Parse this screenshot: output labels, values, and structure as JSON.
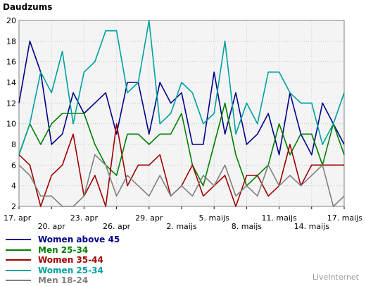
{
  "chart_data": {
    "type": "line",
    "title": "Daudzums",
    "ylim": [
      2,
      20
    ],
    "y_ticks": [
      2,
      4,
      6,
      8,
      10,
      12,
      14,
      16,
      18,
      20
    ],
    "grid": true,
    "legend_position": "bottom-left",
    "x": [
      "17. apr",
      "18. apr",
      "19. apr",
      "20. apr",
      "21. apr",
      "22. apr",
      "23. apr",
      "24. apr",
      "25. apr",
      "26. apr",
      "27. apr",
      "28. apr",
      "29. apr",
      "30. apr",
      "1. maijs",
      "2. maijs",
      "3. maijs",
      "4. maijs",
      "5. maijs",
      "6. maijs",
      "7. maijs",
      "8. maijs",
      "9. maijs",
      "10. maijs",
      "11. maijs",
      "12. maijs",
      "13. maijs",
      "14. maijs",
      "15. maijs",
      "16. maijs",
      "17. maijs"
    ],
    "x_tick_labels": [
      {
        "label": "17. apr",
        "index": 0,
        "row": 0
      },
      {
        "label": "20. apr",
        "index": 3,
        "row": 1
      },
      {
        "label": "23. apr",
        "index": 6,
        "row": 0
      },
      {
        "label": "26. apr",
        "index": 9,
        "row": 1
      },
      {
        "label": "29. apr",
        "index": 12,
        "row": 0
      },
      {
        "label": "2. maijs",
        "index": 15,
        "row": 1
      },
      {
        "label": "5. maijs",
        "index": 18,
        "row": 0
      },
      {
        "label": "8. maijs",
        "index": 21,
        "row": 1
      },
      {
        "label": "11. maijs",
        "index": 24,
        "row": 0
      },
      {
        "label": "14. maijs",
        "index": 27,
        "row": 1
      },
      {
        "label": "17. maijs",
        "index": 30,
        "row": 0
      }
    ],
    "series": [
      {
        "name": "Women above 45",
        "color": "#00008b",
        "values": [
          12,
          18,
          15,
          8,
          9,
          13,
          11,
          12,
          13,
          9,
          14,
          14,
          9,
          14,
          12,
          13,
          8,
          8,
          15,
          9,
          13,
          8,
          9,
          11,
          7,
          13,
          9,
          7,
          12,
          10,
          8
        ]
      },
      {
        "name": "Men 25-34",
        "color": "#008000",
        "values": [
          7,
          10,
          8,
          10,
          11,
          11,
          11,
          8,
          6,
          5,
          9,
          9,
          8,
          9,
          9,
          11,
          6,
          4,
          8,
          12,
          7,
          4,
          5,
          6,
          10,
          7,
          9,
          9,
          6,
          10,
          7
        ]
      },
      {
        "name": "Women 35-44",
        "color": "#a00000",
        "values": [
          7,
          6,
          2,
          5,
          6,
          9,
          3,
          5,
          2,
          10,
          4,
          6,
          6,
          7,
          3,
          4,
          6,
          3,
          4,
          5,
          2,
          5,
          5,
          3,
          4,
          8,
          4,
          6,
          6,
          6,
          6
        ]
      },
      {
        "name": "Women 25-34",
        "color": "#00a0a0",
        "values": [
          7,
          10,
          15,
          13,
          17,
          10,
          15,
          16,
          19,
          19,
          13,
          14,
          20,
          10,
          11,
          14,
          13,
          10,
          11,
          18,
          9,
          12,
          10,
          15,
          15,
          13,
          12,
          12,
          8,
          10,
          13
        ]
      },
      {
        "name": "Men 18-24",
        "color": "#808080",
        "values": [
          6,
          5,
          3,
          3,
          2,
          2,
          3,
          7,
          6,
          3,
          5,
          4,
          3,
          5,
          3,
          4,
          3,
          5,
          4,
          6,
          3,
          4,
          3,
          6,
          4,
          5,
          4,
          5,
          6,
          2,
          3
        ]
      }
    ]
  },
  "watermark": "LiveInternet"
}
